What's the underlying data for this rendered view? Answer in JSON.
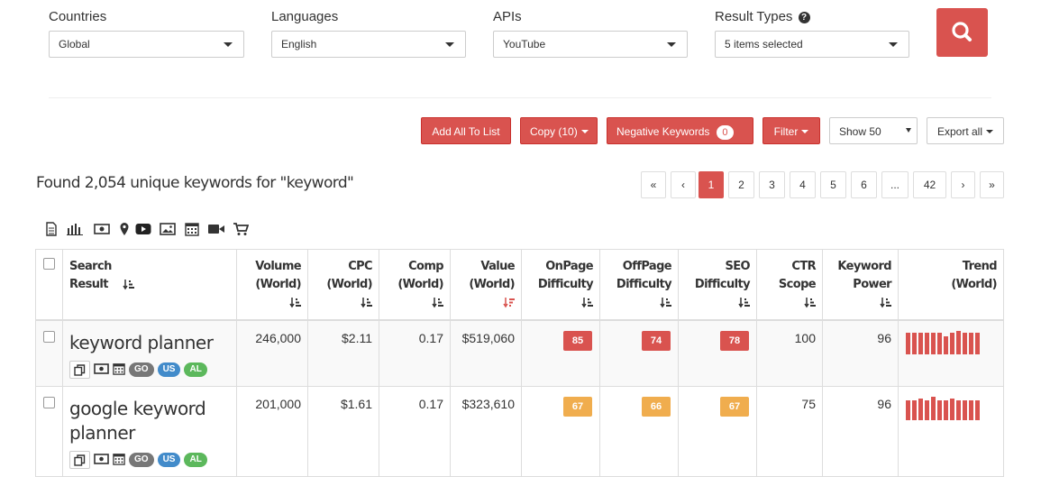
{
  "filters": {
    "countries": {
      "label": "Countries",
      "value": "Global"
    },
    "languages": {
      "label": "Languages",
      "value": "English"
    },
    "apis": {
      "label": "APIs",
      "value": "YouTube"
    },
    "result_types": {
      "label": "Result Types",
      "value": "5 items selected"
    }
  },
  "toolbar": {
    "add_all": "Add All To List",
    "copy": "Copy (10)",
    "negative_keywords": "Negative Keywords",
    "negative_count": "0",
    "filter": "Filter",
    "show": "Show 50",
    "export": "Export all"
  },
  "found_text": "Found 2,054 unique keywords for \"keyword\"",
  "pagination": [
    "«",
    "‹",
    "1",
    "2",
    "3",
    "4",
    "5",
    "6",
    "...",
    "42",
    "›",
    "»"
  ],
  "pagination_active": "1",
  "table": {
    "headers": {
      "search_result": [
        "Search",
        "Result"
      ],
      "volume": [
        "Volume",
        "(World)"
      ],
      "cpc": [
        "CPC",
        "(World)"
      ],
      "comp": [
        "Comp",
        "(World)"
      ],
      "value": [
        "Value",
        "(World)"
      ],
      "onpage": [
        "OnPage",
        "Difficulty"
      ],
      "offpage": [
        "OffPage",
        "Difficulty"
      ],
      "seo": [
        "SEO",
        "Difficulty"
      ],
      "ctr": [
        "CTR",
        "Scope"
      ],
      "power": [
        "Keyword",
        "Power"
      ],
      "trend": [
        "Trend",
        "(World)"
      ]
    },
    "rows": [
      {
        "keyword": "keyword planner",
        "tags": [
          "GO",
          "US",
          "AL"
        ],
        "volume": "246,000",
        "cpc": "$2.11",
        "comp": "0.17",
        "value": "$519,060",
        "onpage": "85",
        "offpage": "74",
        "seo": "78",
        "ctr": "100",
        "power": "96",
        "trend": [
          0.92,
          0.92,
          0.92,
          0.92,
          0.92,
          0.92,
          0.78,
          0.92,
          1.0,
          0.92,
          0.92,
          0.92
        ]
      },
      {
        "keyword": "google keyword planner",
        "tags": [
          "GO",
          "US",
          "AL"
        ],
        "volume": "201,000",
        "cpc": "$1.61",
        "comp": "0.17",
        "value": "$323,610",
        "onpage": "67",
        "offpage": "66",
        "seo": "67",
        "ctr": "75",
        "power": "96",
        "trend": [
          0.85,
          0.85,
          0.92,
          0.85,
          1.0,
          0.85,
          0.85,
          0.92,
          0.85,
          0.85,
          0.85,
          0.85
        ]
      }
    ]
  },
  "colors": {
    "accent": "#d9534f",
    "difficulty_high": "#d9534f",
    "difficulty_medium": "#f0ad4e",
    "tag_go": "#777777",
    "tag_us": "#428bca",
    "tag_al": "#5cb85c"
  },
  "icons": [
    "document-icon",
    "bar-chart-icon",
    "money-icon",
    "map-pin-icon",
    "youtube-icon",
    "image-icon",
    "calendar-icon",
    "video-icon",
    "cart-icon"
  ]
}
